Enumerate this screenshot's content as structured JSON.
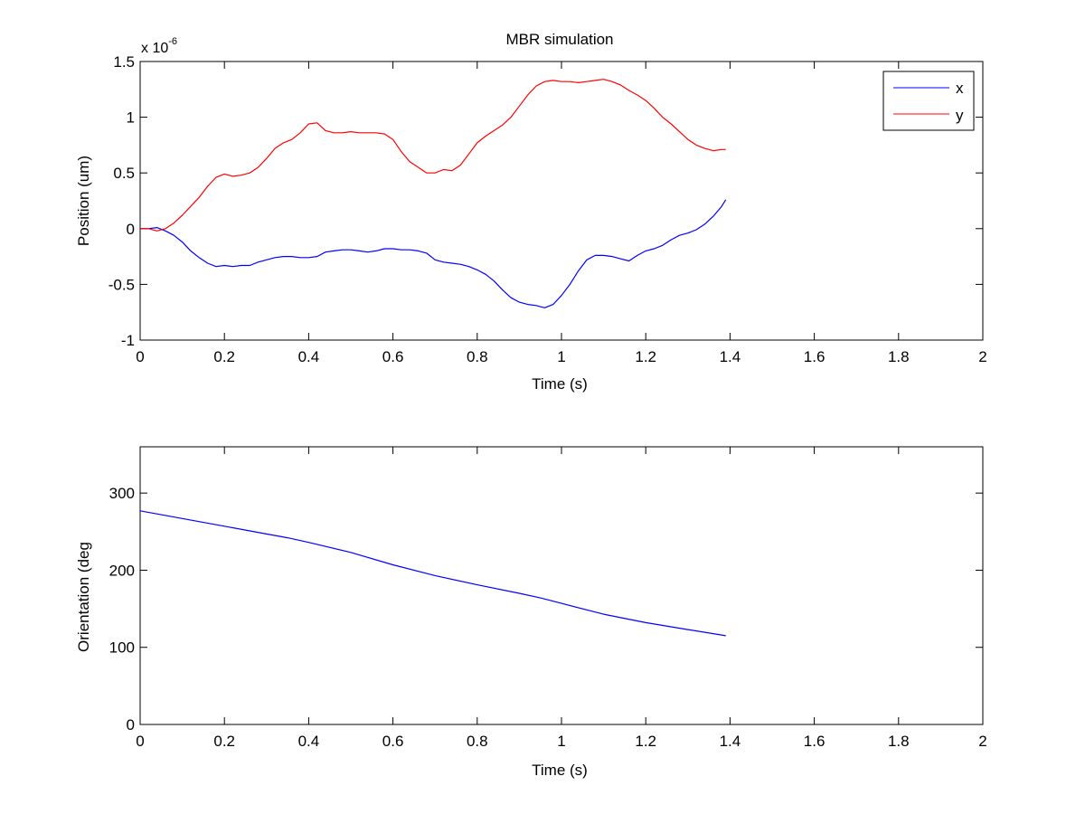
{
  "chart_data": [
    {
      "type": "line",
      "title": "MBR simulation",
      "xlabel": "Time (s)",
      "ylabel": "Position (um)",
      "exponent_label": {
        "base": "x 10",
        "power": "-6"
      },
      "xlim": [
        0,
        2
      ],
      "ylim": [
        -1,
        1.5
      ],
      "xticks": [
        "0",
        "0.2",
        "0.4",
        "0.6",
        "0.8",
        "1",
        "1.2",
        "1.4",
        "1.6",
        "1.8",
        "2"
      ],
      "yticks": [
        "-1",
        "-0.5",
        "0",
        "0.5",
        "1",
        "1.5"
      ],
      "grid": false,
      "legend_position": "top-right",
      "series": [
        {
          "name": "x",
          "color": "#0000ff",
          "x": [
            0,
            0.02,
            0.04,
            0.06,
            0.08,
            0.1,
            0.12,
            0.14,
            0.16,
            0.18,
            0.2,
            0.22,
            0.24,
            0.26,
            0.28,
            0.3,
            0.32,
            0.34,
            0.36,
            0.38,
            0.4,
            0.42,
            0.44,
            0.46,
            0.48,
            0.5,
            0.52,
            0.54,
            0.56,
            0.58,
            0.6,
            0.62,
            0.64,
            0.66,
            0.68,
            0.7,
            0.72,
            0.74,
            0.76,
            0.78,
            0.8,
            0.82,
            0.84,
            0.86,
            0.88,
            0.9,
            0.92,
            0.94,
            0.96,
            0.98,
            1.0,
            1.02,
            1.04,
            1.06,
            1.08,
            1.1,
            1.12,
            1.14,
            1.16,
            1.18,
            1.2,
            1.22,
            1.24,
            1.26,
            1.28,
            1.3,
            1.32,
            1.34,
            1.36,
            1.38,
            1.39
          ],
          "y": [
            0,
            0.0,
            0.01,
            -0.02,
            -0.06,
            -0.12,
            -0.2,
            -0.26,
            -0.31,
            -0.34,
            -0.33,
            -0.34,
            -0.33,
            -0.33,
            -0.3,
            -0.28,
            -0.26,
            -0.25,
            -0.25,
            -0.26,
            -0.26,
            -0.25,
            -0.21,
            -0.2,
            -0.19,
            -0.19,
            -0.2,
            -0.21,
            -0.2,
            -0.18,
            -0.18,
            -0.19,
            -0.19,
            -0.2,
            -0.22,
            -0.28,
            -0.3,
            -0.31,
            -0.32,
            -0.34,
            -0.37,
            -0.41,
            -0.47,
            -0.55,
            -0.62,
            -0.66,
            -0.68,
            -0.69,
            -0.71,
            -0.68,
            -0.6,
            -0.5,
            -0.38,
            -0.28,
            -0.24,
            -0.24,
            -0.25,
            -0.27,
            -0.29,
            -0.24,
            -0.2,
            -0.18,
            -0.15,
            -0.1,
            -0.06,
            -0.04,
            -0.01,
            0.04,
            0.11,
            0.2,
            0.26
          ]
        },
        {
          "name": "y",
          "color": "#ff0000",
          "x": [
            0,
            0.02,
            0.04,
            0.06,
            0.08,
            0.1,
            0.12,
            0.14,
            0.16,
            0.18,
            0.2,
            0.22,
            0.24,
            0.26,
            0.28,
            0.3,
            0.32,
            0.34,
            0.36,
            0.38,
            0.4,
            0.42,
            0.44,
            0.46,
            0.48,
            0.5,
            0.52,
            0.54,
            0.56,
            0.58,
            0.6,
            0.62,
            0.64,
            0.66,
            0.68,
            0.7,
            0.72,
            0.74,
            0.76,
            0.78,
            0.8,
            0.82,
            0.84,
            0.86,
            0.88,
            0.9,
            0.92,
            0.94,
            0.96,
            0.98,
            1.0,
            1.02,
            1.04,
            1.06,
            1.08,
            1.1,
            1.12,
            1.14,
            1.16,
            1.18,
            1.2,
            1.22,
            1.24,
            1.26,
            1.28,
            1.3,
            1.32,
            1.34,
            1.36,
            1.38,
            1.39
          ],
          "y": [
            0,
            0.0,
            -0.02,
            0.0,
            0.05,
            0.12,
            0.2,
            0.28,
            0.38,
            0.46,
            0.49,
            0.47,
            0.48,
            0.5,
            0.55,
            0.63,
            0.72,
            0.77,
            0.8,
            0.86,
            0.94,
            0.95,
            0.88,
            0.86,
            0.86,
            0.87,
            0.86,
            0.86,
            0.86,
            0.85,
            0.8,
            0.69,
            0.6,
            0.55,
            0.5,
            0.5,
            0.53,
            0.52,
            0.57,
            0.67,
            0.77,
            0.83,
            0.88,
            0.93,
            1.0,
            1.1,
            1.2,
            1.28,
            1.32,
            1.33,
            1.32,
            1.32,
            1.31,
            1.32,
            1.33,
            1.34,
            1.32,
            1.29,
            1.24,
            1.2,
            1.15,
            1.08,
            1.0,
            0.94,
            0.87,
            0.8,
            0.75,
            0.72,
            0.7,
            0.71,
            0.71
          ]
        }
      ]
    },
    {
      "type": "line",
      "title": "",
      "xlabel": "Time (s)",
      "ylabel": "Orientation (deg",
      "xlim": [
        0,
        2
      ],
      "ylim": [
        0,
        360
      ],
      "xticks": [
        "0",
        "0.2",
        "0.4",
        "0.6",
        "0.8",
        "1",
        "1.2",
        "1.4",
        "1.6",
        "1.8",
        "2"
      ],
      "yticks": [
        "0",
        "100",
        "200",
        "300"
      ],
      "ytick_values": [
        0,
        100,
        200,
        300
      ],
      "grid": false,
      "series": [
        {
          "color": "#0000ff",
          "x": [
            0,
            0.1,
            0.2,
            0.3,
            0.35,
            0.4,
            0.5,
            0.6,
            0.7,
            0.8,
            0.9,
            0.95,
            1.0,
            1.1,
            1.2,
            1.3,
            1.39
          ],
          "y": [
            277,
            267,
            257,
            247,
            242,
            236,
            223,
            207,
            193,
            181,
            170,
            164,
            157,
            143,
            132,
            123,
            115
          ]
        }
      ]
    }
  ]
}
